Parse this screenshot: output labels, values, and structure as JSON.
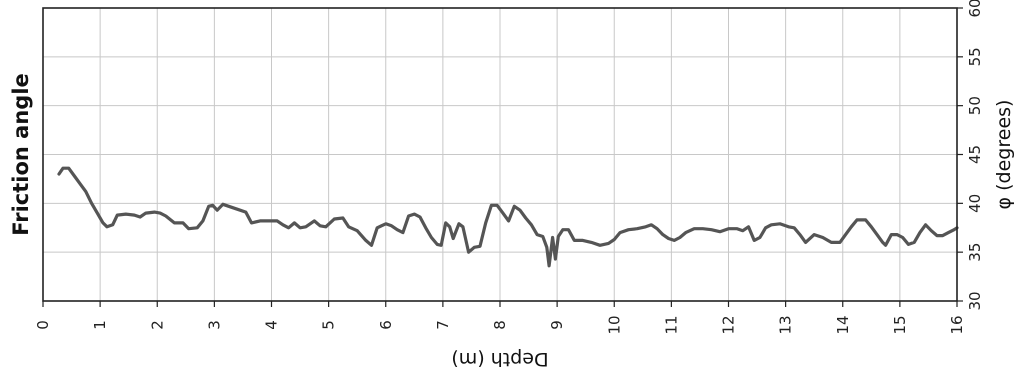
{
  "chart_data": {
    "type": "line",
    "side_title": "Friction angle",
    "xlabel": "Depth (m)",
    "ylabel": "φ (degrees)",
    "xlim": [
      0,
      16
    ],
    "ylim": [
      30,
      60
    ],
    "x_ticks": [
      0,
      1,
      2,
      3,
      4,
      5,
      6,
      7,
      8,
      9,
      10,
      11,
      12,
      13,
      14,
      15,
      16
    ],
    "x_tick_labels": [
      "0",
      "1",
      "2",
      "3",
      "4",
      "5",
      "6",
      "7",
      "8",
      "9",
      "10",
      "11",
      "12",
      "13",
      "14",
      "15",
      "16"
    ],
    "y_ticks": [
      30,
      35,
      40,
      45,
      50,
      55,
      60
    ],
    "y_tick_labels": [
      "30",
      "35",
      "40",
      "45",
      "50",
      "55",
      "60"
    ],
    "grid": true,
    "series": [
      {
        "color": "#555555",
        "points": [
          [
            0.28,
            43.0
          ],
          [
            0.35,
            43.6
          ],
          [
            0.45,
            43.6
          ],
          [
            0.55,
            42.8
          ],
          [
            0.65,
            42.0
          ],
          [
            0.75,
            41.2
          ],
          [
            0.85,
            40.0
          ],
          [
            0.95,
            39.0
          ],
          [
            1.05,
            38.0
          ],
          [
            1.12,
            37.6
          ],
          [
            1.22,
            37.8
          ],
          [
            1.3,
            38.8
          ],
          [
            1.45,
            38.9
          ],
          [
            1.6,
            38.8
          ],
          [
            1.7,
            38.6
          ],
          [
            1.8,
            39.0
          ],
          [
            1.95,
            39.1
          ],
          [
            2.05,
            39.0
          ],
          [
            2.15,
            38.7
          ],
          [
            2.3,
            38.0
          ],
          [
            2.45,
            38.0
          ],
          [
            2.55,
            37.4
          ],
          [
            2.7,
            37.5
          ],
          [
            2.8,
            38.2
          ],
          [
            2.9,
            39.7
          ],
          [
            2.97,
            39.8
          ],
          [
            3.05,
            39.3
          ],
          [
            3.15,
            39.9
          ],
          [
            3.25,
            39.7
          ],
          [
            3.4,
            39.4
          ],
          [
            3.55,
            39.1
          ],
          [
            3.65,
            38.0
          ],
          [
            3.8,
            38.2
          ],
          [
            3.95,
            38.2
          ],
          [
            4.1,
            38.2
          ],
          [
            4.2,
            37.8
          ],
          [
            4.3,
            37.5
          ],
          [
            4.4,
            38.0
          ],
          [
            4.5,
            37.5
          ],
          [
            4.6,
            37.6
          ],
          [
            4.75,
            38.2
          ],
          [
            4.85,
            37.7
          ],
          [
            4.95,
            37.6
          ],
          [
            5.1,
            38.4
          ],
          [
            5.25,
            38.5
          ],
          [
            5.35,
            37.6
          ],
          [
            5.5,
            37.2
          ],
          [
            5.65,
            36.2
          ],
          [
            5.75,
            35.7
          ],
          [
            5.85,
            37.5
          ],
          [
            6.0,
            37.9
          ],
          [
            6.1,
            37.7
          ],
          [
            6.2,
            37.3
          ],
          [
            6.3,
            37.0
          ],
          [
            6.4,
            38.7
          ],
          [
            6.5,
            38.9
          ],
          [
            6.6,
            38.6
          ],
          [
            6.7,
            37.5
          ],
          [
            6.8,
            36.5
          ],
          [
            6.9,
            35.8
          ],
          [
            6.97,
            35.7
          ],
          [
            7.05,
            38.0
          ],
          [
            7.12,
            37.6
          ],
          [
            7.18,
            36.4
          ],
          [
            7.28,
            37.9
          ],
          [
            7.35,
            37.6
          ],
          [
            7.45,
            35.0
          ],
          [
            7.55,
            35.5
          ],
          [
            7.65,
            35.6
          ],
          [
            7.75,
            38.0
          ],
          [
            7.85,
            39.8
          ],
          [
            7.95,
            39.8
          ],
          [
            8.05,
            39.0
          ],
          [
            8.15,
            38.2
          ],
          [
            8.25,
            39.7
          ],
          [
            8.35,
            39.3
          ],
          [
            8.45,
            38.5
          ],
          [
            8.55,
            37.8
          ],
          [
            8.65,
            36.8
          ],
          [
            8.75,
            36.6
          ],
          [
            8.82,
            35.5
          ],
          [
            8.86,
            33.6
          ],
          [
            8.92,
            36.5
          ],
          [
            8.97,
            34.3
          ],
          [
            9.02,
            36.6
          ],
          [
            9.1,
            37.3
          ],
          [
            9.2,
            37.3
          ],
          [
            9.3,
            36.2
          ],
          [
            9.45,
            36.2
          ],
          [
            9.6,
            36.0
          ],
          [
            9.75,
            35.7
          ],
          [
            9.9,
            35.9
          ],
          [
            10.0,
            36.3
          ],
          [
            10.1,
            37.0
          ],
          [
            10.25,
            37.3
          ],
          [
            10.4,
            37.4
          ],
          [
            10.55,
            37.6
          ],
          [
            10.65,
            37.8
          ],
          [
            10.75,
            37.4
          ],
          [
            10.85,
            36.8
          ],
          [
            10.95,
            36.4
          ],
          [
            11.05,
            36.2
          ],
          [
            11.15,
            36.5
          ],
          [
            11.25,
            37.0
          ],
          [
            11.4,
            37.4
          ],
          [
            11.55,
            37.4
          ],
          [
            11.7,
            37.3
          ],
          [
            11.85,
            37.1
          ],
          [
            12.0,
            37.4
          ],
          [
            12.15,
            37.4
          ],
          [
            12.25,
            37.2
          ],
          [
            12.35,
            37.6
          ],
          [
            12.45,
            36.2
          ],
          [
            12.55,
            36.5
          ],
          [
            12.65,
            37.5
          ],
          [
            12.75,
            37.8
          ],
          [
            12.9,
            37.9
          ],
          [
            13.05,
            37.6
          ],
          [
            13.15,
            37.5
          ],
          [
            13.25,
            36.8
          ],
          [
            13.35,
            36.0
          ],
          [
            13.5,
            36.8
          ],
          [
            13.65,
            36.5
          ],
          [
            13.8,
            36.0
          ],
          [
            13.95,
            36.0
          ],
          [
            14.05,
            36.8
          ],
          [
            14.15,
            37.6
          ],
          [
            14.25,
            38.3
          ],
          [
            14.4,
            38.3
          ],
          [
            14.5,
            37.6
          ],
          [
            14.6,
            36.8
          ],
          [
            14.7,
            36.0
          ],
          [
            14.75,
            35.7
          ],
          [
            14.85,
            36.8
          ],
          [
            14.95,
            36.8
          ],
          [
            15.05,
            36.5
          ],
          [
            15.15,
            35.8
          ],
          [
            15.25,
            36.0
          ],
          [
            15.35,
            37.0
          ],
          [
            15.45,
            37.8
          ],
          [
            15.55,
            37.2
          ],
          [
            15.65,
            36.7
          ],
          [
            15.75,
            36.7
          ],
          [
            15.85,
            37.0
          ],
          [
            15.95,
            37.3
          ],
          [
            16.0,
            37.5
          ]
        ]
      }
    ]
  }
}
